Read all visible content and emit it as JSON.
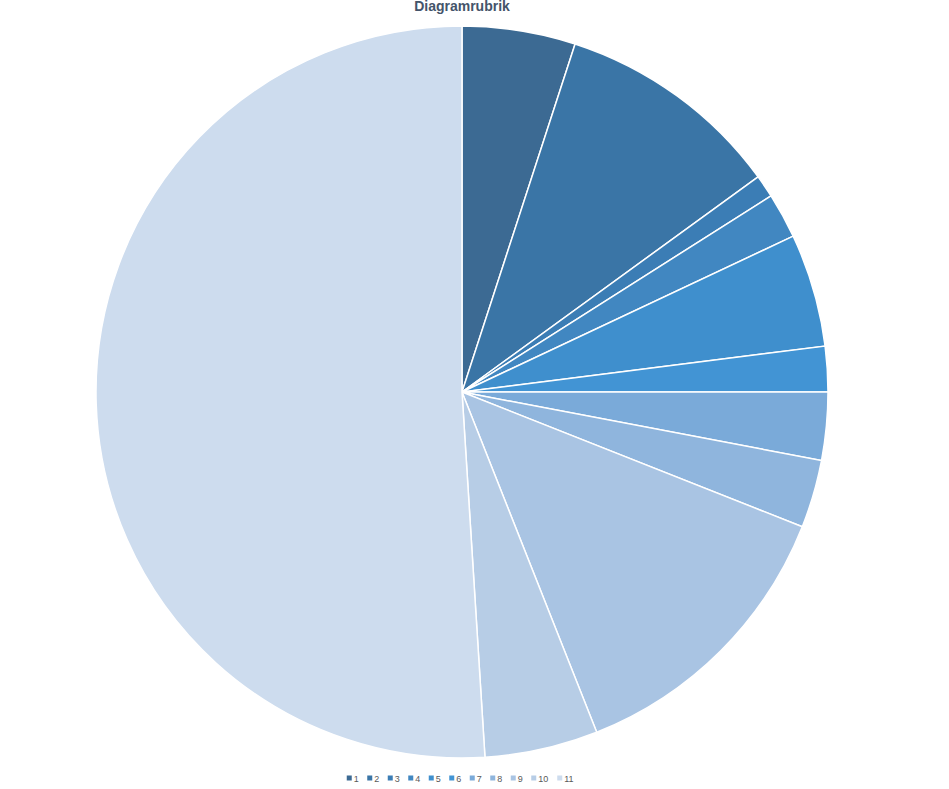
{
  "chart_data": {
    "type": "pie",
    "title": "Diagramrubrik",
    "categories": [
      "1",
      "2",
      "3",
      "4",
      "5",
      "6",
      "7",
      "8",
      "9",
      "10",
      "11"
    ],
    "values": [
      5,
      10,
      1,
      2,
      5,
      2,
      3,
      3,
      13,
      5,
      51
    ],
    "colors": [
      "#3c6a93",
      "#3a75a6",
      "#3b7db5",
      "#4187c1",
      "#3f8fcd",
      "#4294d4",
      "#7aaad9",
      "#8fb5dd",
      "#a9c4e3",
      "#b7cde6",
      "#cddcee"
    ],
    "legend": "bottom"
  }
}
